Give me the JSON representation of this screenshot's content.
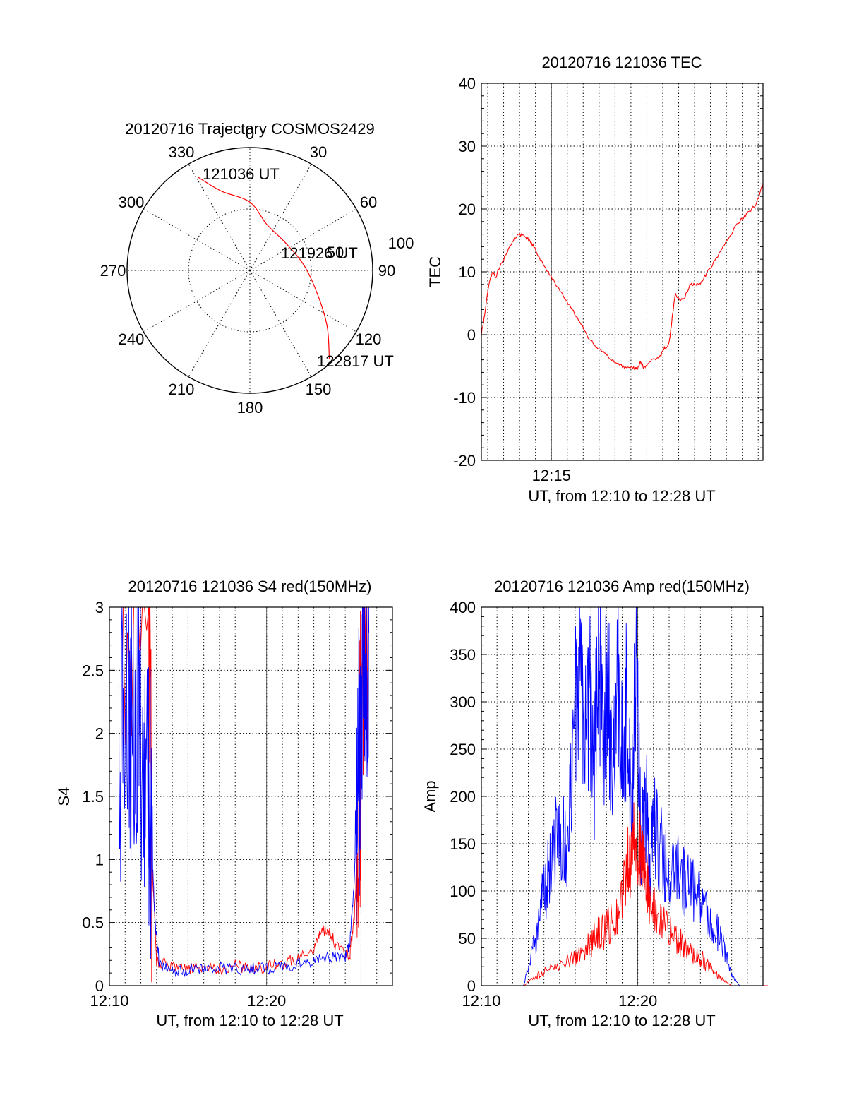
{
  "chart_data": [
    {
      "id": "trajectory",
      "type": "polar",
      "title": "20120716 Trajectory COSMOS2429",
      "azimuth_labels": [
        "0",
        "30",
        "60",
        "90",
        "120",
        "150",
        "180",
        "210",
        "240",
        "270",
        "300",
        "330"
      ],
      "elevation_labels": [
        "50",
        "100"
      ],
      "grid": true,
      "series": [
        {
          "color": "#ff0000",
          "points": [
            {
              "azimuth": 331,
              "zenith": 78
            },
            {
              "azimuth": 340,
              "zenith": 62
            },
            {
              "azimuth": 360,
              "zenith": 50
            },
            {
              "azimuth": 20,
              "zenith": 36
            },
            {
              "azimuth": 52,
              "zenith": 33
            },
            {
              "azimuth": 85,
              "zenith": 40
            },
            {
              "azimuth": 110,
              "zenith": 53
            },
            {
              "azimuth": 126,
              "zenith": 70
            },
            {
              "azimuth": 138,
              "zenith": 87
            }
          ]
        }
      ],
      "annotations": [
        {
          "text": "121036 UT"
        },
        {
          "text": "121926 UT"
        },
        {
          "text": "122817 UT"
        }
      ]
    },
    {
      "id": "tec",
      "type": "line",
      "title": "20120716 121036 TEC",
      "ylabel": "TEC",
      "xlabel": "UT, from 12:10 to 12:28 UT",
      "ylim": [
        -20,
        40
      ],
      "yticks": [
        "40",
        "30",
        "20",
        "10",
        "0",
        "-10",
        "-20"
      ],
      "xlim_minutes": [
        10.6,
        28.3
      ],
      "xticks": [
        {
          "at": 15,
          "label": "12:15"
        }
      ],
      "grid": true,
      "series": [
        {
          "color": "#ff0000",
          "x": [
            10.6,
            10.85,
            11.1,
            11.35,
            11.5,
            11.7,
            12.0,
            12.3,
            12.6,
            13.0,
            13.4,
            13.6,
            13.9,
            14.3,
            14.8,
            15.3,
            15.8,
            16.3,
            16.8,
            17.3,
            17.8,
            18.2,
            18.6,
            19.0,
            19.4,
            19.8,
            20.1,
            20.3,
            20.45,
            20.6,
            20.8,
            21.0,
            21.3,
            21.6,
            21.9,
            22.1,
            22.3,
            22.45,
            22.6,
            22.8,
            23.1,
            23.4,
            23.7,
            24.0,
            24.3,
            24.7,
            25.2,
            25.7,
            26.2,
            26.6,
            27.0,
            27.4,
            27.8,
            28.1,
            28.3
          ],
          "y": [
            0,
            4,
            8.5,
            10,
            9,
            10.5,
            12,
            13.5,
            15,
            16,
            15.5,
            15,
            14,
            12,
            10,
            8,
            6,
            4,
            2,
            -0.3,
            -2,
            -2.7,
            -3.5,
            -4.5,
            -5,
            -5.3,
            -5.2,
            -5.5,
            -5.2,
            -4.2,
            -5.3,
            -5.0,
            -4.0,
            -3.8,
            -3.2,
            -2.0,
            -2.0,
            -0.5,
            3,
            6.5,
            5.5,
            6,
            8,
            8,
            8,
            9.5,
            11.5,
            13.5,
            15.5,
            17.5,
            18.5,
            19.5,
            20.5,
            22.5,
            24
          ]
        }
      ]
    },
    {
      "id": "s4",
      "type": "line",
      "title": "20120716 121036 S4 red(150MHz)",
      "ylabel": "S4",
      "xlabel": "UT, from 12:10 to 12:28 UT",
      "ylim": [
        0,
        3
      ],
      "yticks": [
        "3",
        "2.5",
        "2",
        "1.5",
        "1",
        "0.5",
        "0"
      ],
      "xlim_minutes": [
        10,
        28
      ],
      "xticks": [
        {
          "at": 10,
          "label": "12:10"
        },
        {
          "at": 20,
          "label": "12:20"
        }
      ],
      "grid": true,
      "series": [
        {
          "color": "#ff0000",
          "x": [
            10.6,
            12.5,
            12.7,
            13.0,
            14.0,
            15.0,
            16.0,
            17.0,
            18.0,
            19.0,
            20.0,
            21.0,
            22.0,
            23.0,
            23.5,
            24.0,
            24.5,
            25.3,
            25.6,
            25.9,
            26.2,
            26.5
          ],
          "y": [
            3,
            3,
            1.0,
            0.2,
            0.14,
            0.13,
            0.15,
            0.13,
            0.16,
            0.14,
            0.15,
            0.17,
            0.22,
            0.3,
            0.45,
            0.42,
            0.3,
            0.25,
            0.6,
            1.5,
            3,
            3
          ]
        },
        {
          "color": "#0000ff",
          "x": [
            10.6,
            11.0,
            11.4,
            11.8,
            12.2,
            12.6,
            12.9,
            13.2,
            14.0,
            15.0,
            16.0,
            17.0,
            18.0,
            19.0,
            20.0,
            21.0,
            22.0,
            23.0,
            24.0,
            25.0,
            25.3,
            25.6,
            25.9,
            26.1,
            26.3,
            26.5
          ],
          "y": [
            1.8,
            2.2,
            2.0,
            2.3,
            1.8,
            1.4,
            0.5,
            0.15,
            0.12,
            0.12,
            0.13,
            0.14,
            0.13,
            0.14,
            0.14,
            0.15,
            0.17,
            0.2,
            0.22,
            0.23,
            0.35,
            0.9,
            1.8,
            2.4,
            2.7,
            2.8
          ]
        }
      ]
    },
    {
      "id": "amp",
      "type": "line",
      "title": "20120716 121036 Amp red(150MHz)",
      "ylabel": "Amp",
      "xlabel": "UT, from 12:10 to 12:28 UT",
      "ylim": [
        0,
        400
      ],
      "yticks": [
        "400",
        "350",
        "300",
        "250",
        "200",
        "150",
        "100",
        "50",
        "0"
      ],
      "xlim_minutes": [
        10,
        28
      ],
      "xticks": [
        {
          "at": 10,
          "label": "12:10"
        },
        {
          "at": 20,
          "label": "12:20"
        }
      ],
      "grid": true,
      "series": [
        {
          "color": "#0000ff",
          "x": [
            10.6,
            12.7,
            13.2,
            13.6,
            14.0,
            14.5,
            15.0,
            15.5,
            16.0,
            16.3,
            16.6,
            16.9,
            17.2,
            17.5,
            17.8,
            18.1,
            18.4,
            18.7,
            19.0,
            19.3,
            19.6,
            19.9,
            20.2,
            20.5,
            20.8,
            21.1,
            21.5,
            22.0,
            22.5,
            23.0,
            23.5,
            24.0,
            24.5,
            25.0,
            25.5,
            26.0,
            26.5,
            28.3
          ],
          "y": [
            0,
            0,
            30,
            60,
            100,
            130,
            170,
            150,
            280,
            350,
            240,
            320,
            200,
            380,
            260,
            330,
            200,
            370,
            240,
            300,
            180,
            350,
            160,
            200,
            130,
            170,
            140,
            130,
            120,
            110,
            100,
            90,
            70,
            60,
            40,
            10,
            0,
            0
          ]
        },
        {
          "color": "#ff0000",
          "x": [
            10.6,
            12.7,
            13.5,
            14.0,
            15.0,
            16.0,
            16.5,
            17.0,
            17.5,
            18.0,
            18.5,
            19.0,
            19.3,
            19.6,
            19.9,
            20.2,
            20.5,
            20.8,
            21.2,
            21.8,
            22.5,
            23.0,
            23.5,
            24.0,
            24.5,
            25.0,
            25.5,
            26.0,
            28.3
          ],
          "y": [
            0,
            0,
            10,
            15,
            20,
            30,
            35,
            45,
            55,
            60,
            70,
            90,
            120,
            150,
            165,
            130,
            110,
            90,
            70,
            60,
            50,
            40,
            35,
            30,
            20,
            12,
            5,
            0,
            0
          ]
        }
      ]
    }
  ]
}
